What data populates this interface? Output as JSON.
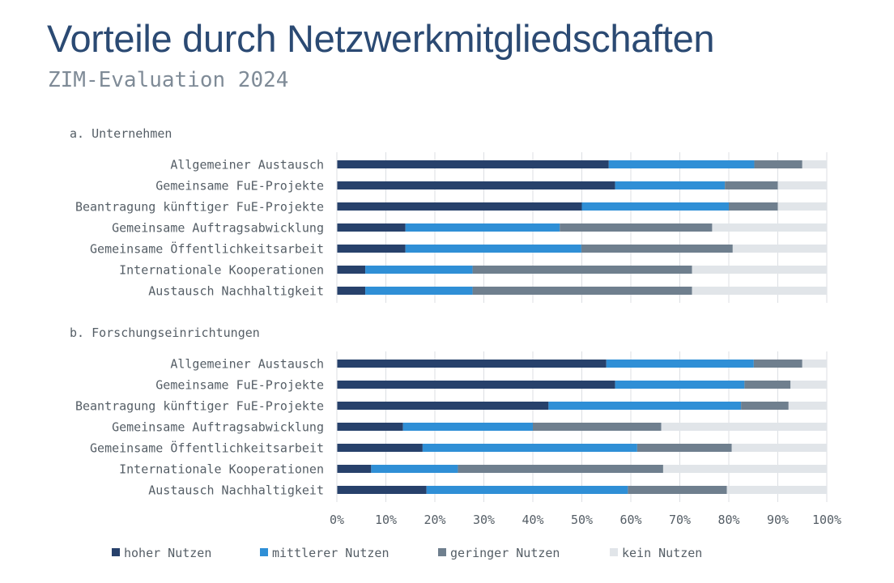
{
  "title": "Vorteile durch Netzwerkmitgliedschaften",
  "subtitle": "ZIM-Evaluation 2024",
  "colors": {
    "hoher": "#27416b",
    "mittlerer": "#2f8fd6",
    "geringer": "#6f7f8e",
    "kein": "#e1e5e9",
    "grid": "#dcdfe3",
    "text": "#555e66"
  },
  "chart_data": {
    "type": "bar",
    "orientation": "horizontal",
    "stacked": true,
    "xlim": [
      0,
      100
    ],
    "xticks": [
      "0%",
      "10%",
      "20%",
      "30%",
      "40%",
      "50%",
      "60%",
      "70%",
      "80%",
      "90%",
      "100%"
    ],
    "series_names": [
      "hoher Nutzen",
      "mittlerer Nutzen",
      "geringer Nutzen",
      "kein Nutzen"
    ],
    "panels": [
      {
        "label": "a. Unternehmen",
        "categories": [
          "Allgemeiner Austausch",
          "Gemeinsame FuE-Projekte",
          "Beantragung künftiger FuE-Projekte",
          "Gemeinsame Auftragsabwicklung",
          "Gemeinsame Öffentlichkeitsarbeit",
          "Internationale Kooperationen",
          "Austausch Nachhaltigkeit "
        ],
        "series": [
          {
            "name": "hoher Nutzen",
            "values": [
              55.5,
              56.8,
              50,
              14,
              14,
              5.8,
              5.8
            ]
          },
          {
            "name": "mittlerer Nutzen",
            "values": [
              29.7,
              22.4,
              30,
              31.5,
              35.9,
              21.9,
              21.9
            ]
          },
          {
            "name": "geringer Nutzen",
            "values": [
              9.8,
              10.8,
              10,
              31.1,
              30.9,
              44.8,
              44.8
            ]
          },
          {
            "name": "kein Nutzen",
            "values": [
              5,
              10,
              10,
              23.4,
              19.2,
              27.5,
              27.5
            ]
          }
        ]
      },
      {
        "label": "b. Forschungseinrichtungen",
        "categories": [
          "Allgemeiner Austausch",
          "Gemeinsame FuE-Projekte",
          "Beantragung künftiger FuE-Projekte",
          "Gemeinsame Auftragsabwicklung",
          "Gemeinsame Öffentlichkeitsarbeit",
          "Internationale Kooperationen",
          "Austausch Nachhaltigkeit "
        ],
        "series": [
          {
            "name": "hoher Nutzen",
            "values": [
              55,
              56.8,
              43.2,
              13.5,
              17.5,
              7,
              18.3
            ]
          },
          {
            "name": "mittlerer Nutzen",
            "values": [
              30.1,
              26.4,
              39.3,
              26.5,
              43.8,
              17.7,
              41.1
            ]
          },
          {
            "name": "geringer Nutzen",
            "values": [
              9.9,
              9.4,
              9.7,
              26.2,
              19.3,
              41.9,
              20.2
            ]
          },
          {
            "name": "kein Nutzen",
            "values": [
              5,
              7.4,
              7.8,
              33.8,
              19.4,
              33.4,
              20.4
            ]
          }
        ]
      }
    ]
  }
}
